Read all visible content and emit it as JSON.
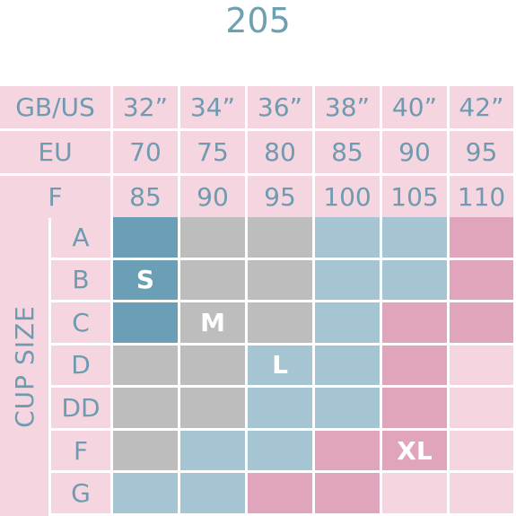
{
  "title": "205",
  "colors": {
    "header_bg": "#f5d5e0",
    "label_text": "#6e9bb0",
    "S": "#6b9fb5",
    "M": "#bdbdbe",
    "L": "#a4c5d1",
    "XL": "#e0a4bd",
    "none": "#f5d5e0"
  },
  "header_rows": [
    {
      "label": "GB/US",
      "values": [
        "32”",
        "34”",
        "36”",
        "38”",
        "40”",
        "42”"
      ]
    },
    {
      "label": "EU",
      "values": [
        "70",
        "75",
        "80",
        "85",
        "90",
        "95"
      ]
    },
    {
      "label": "F",
      "values": [
        "85",
        "90",
        "95",
        "100",
        "105",
        "110"
      ]
    }
  ],
  "cup_size_label": "CUP SIZE",
  "cup_rows": [
    "A",
    "B",
    "C",
    "D",
    "DD",
    "F",
    "G"
  ],
  "size_grid": [
    [
      "S",
      "M",
      "M",
      "L",
      "L",
      "XL"
    ],
    [
      "S",
      "M",
      "M",
      "L",
      "L",
      "XL"
    ],
    [
      "S",
      "M",
      "M",
      "L",
      "XL",
      "XL"
    ],
    [
      "M",
      "M",
      "L",
      "L",
      "XL",
      "none"
    ],
    [
      "M",
      "M",
      "L",
      "L",
      "XL",
      "none"
    ],
    [
      "M",
      "L",
      "L",
      "XL",
      "XL",
      "none"
    ],
    [
      "L",
      "L",
      "XL",
      "XL",
      "none",
      "none"
    ]
  ],
  "size_labels": [
    {
      "text": "S",
      "row": 1,
      "col": 0
    },
    {
      "text": "M",
      "row": 2,
      "col": 1
    },
    {
      "text": "L",
      "row": 3,
      "col": 2
    },
    {
      "text": "XL",
      "row": 5,
      "col": 4
    }
  ]
}
